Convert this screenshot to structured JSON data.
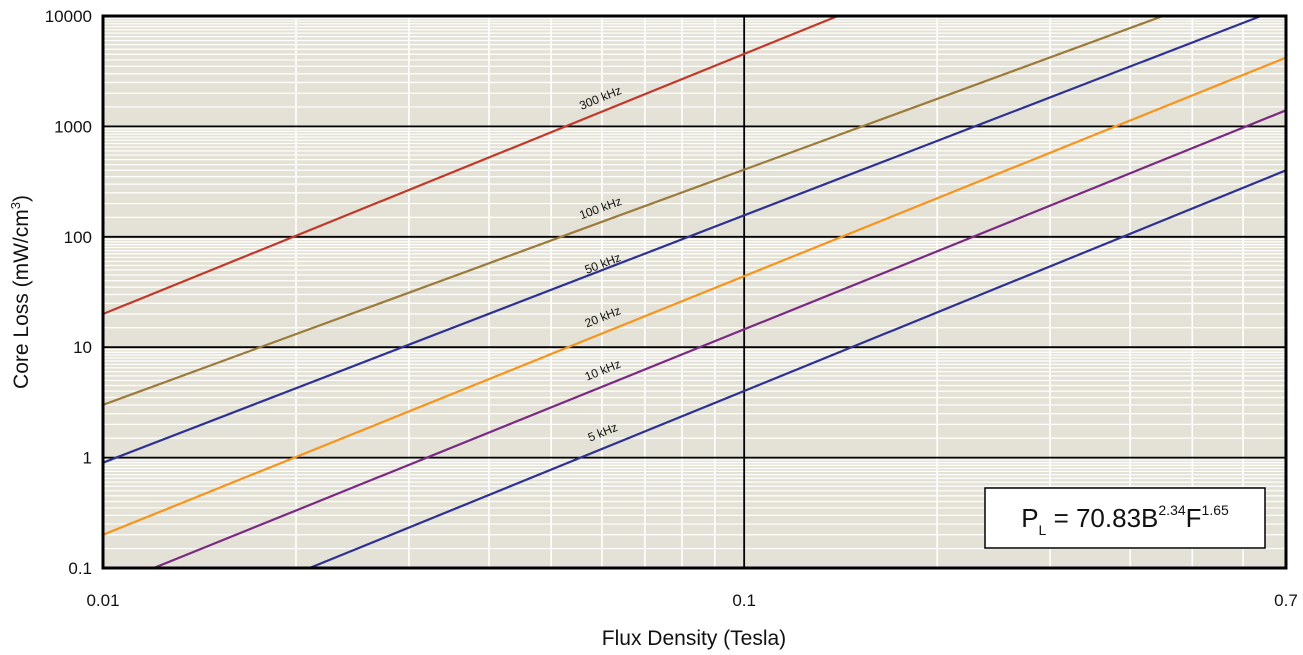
{
  "chart_data": {
    "type": "line",
    "xscale": "log",
    "yscale": "log",
    "xlim": [
      0.01,
      0.7
    ],
    "ylim": [
      0.1,
      10000
    ],
    "xlabel": "Flux Density (Tesla)",
    "ylabel_main": "Core Loss (mW/cm",
    "ylabel_sup": "3",
    "ylabel_end": ")",
    "x_ticks": [
      "0.01",
      "0.1",
      "0.7"
    ],
    "y_ticks": [
      "0.1",
      "1",
      "10",
      "100",
      "1000",
      "10000"
    ],
    "grid": true,
    "background_color": "#e4e2d6",
    "formula": {
      "p": "P",
      "sub": "L",
      "mid": " = 70.83B",
      "sup1": "2.34",
      "f": "F",
      "sup2": "1.65"
    },
    "series": [
      {
        "name": "300 kHz",
        "color": "#c0392b",
        "x": [
          0.01,
          0.14
        ],
        "y": [
          20,
          10000
        ]
      },
      {
        "name": "100 kHz",
        "color": "#9c7a3c",
        "x": [
          0.01,
          0.45
        ],
        "y": [
          3,
          10000
        ]
      },
      {
        "name": "50 kHz",
        "color": "#2e3192",
        "x": [
          0.01,
          0.64
        ],
        "y": [
          0.9,
          10000
        ]
      },
      {
        "name": "20 kHz",
        "color": "#f7941d",
        "x": [
          0.01,
          0.7
        ],
        "y": [
          0.2,
          4200
        ]
      },
      {
        "name": "10 kHz",
        "color": "#7b2a83",
        "x": [
          0.012,
          0.7
        ],
        "y": [
          0.1,
          1400
        ]
      },
      {
        "name": "5 kHz",
        "color": "#2e3192",
        "x": [
          0.021,
          0.7
        ],
        "y": [
          0.1,
          400
        ]
      }
    ],
    "series_label_text": [
      "300 kHz",
      "100 kHz",
      "50 kHz",
      "20 kHz",
      "10 kHz",
      "5 kHz"
    ]
  }
}
